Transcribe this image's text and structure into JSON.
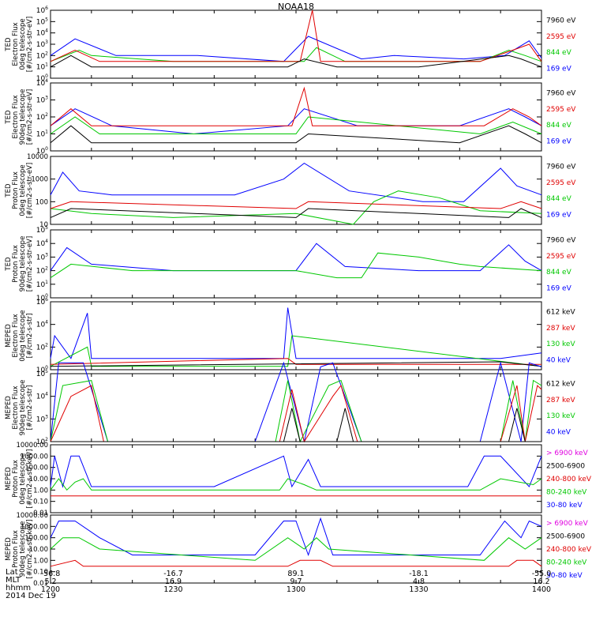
{
  "title": "NOAA18",
  "colors": {
    "black": "#000000",
    "red": "#e00000",
    "green": "#00c800",
    "blue": "#0000ff",
    "magenta": "#e000e0"
  },
  "chart_data": [
    {
      "type": "line",
      "ylabel": [
        "TED",
        "Electron Flux",
        "0deg telescope",
        "[#/cm2-s-str-eV]"
      ],
      "yscale": "log",
      "yticks": [
        "10^0",
        "10^1",
        "10^2",
        "10^3",
        "10^4",
        "10^5",
        "10^6"
      ],
      "legend": [
        {
          "label": "7960 eV",
          "color": "black"
        },
        {
          "label": "2595 eV",
          "color": "red"
        },
        {
          "label": "844 eV",
          "color": "green"
        },
        {
          "label": "169 eV",
          "color": "blue"
        }
      ],
      "series": [
        {
          "color": "blue",
          "x": [
            1200,
            1206,
            1216,
            1236,
            1257,
            1303,
            1316,
            1324,
            1341,
            1351,
            1357,
            1400
          ],
          "y": [
            100,
            3000,
            100,
            100,
            30,
            5000,
            50,
            100,
            50,
            100,
            2000,
            60
          ]
        },
        {
          "color": "green",
          "x": [
            1200,
            1207,
            1210,
            1230,
            1302,
            1305,
            1312,
            1345,
            1352,
            1356,
            1400
          ],
          "y": [
            30,
            300,
            100,
            30,
            30,
            500,
            30,
            30,
            300,
            100,
            30
          ]
        },
        {
          "color": "red",
          "x": [
            1200,
            1206,
            1212,
            1301,
            1304,
            1306,
            1345,
            1353,
            1357,
            1400
          ],
          "y": [
            30,
            300,
            30,
            30,
            1000000,
            30,
            30,
            300,
            1000,
            30
          ]
        },
        {
          "color": "black",
          "x": [
            1200,
            1205,
            1210,
            1258,
            1302,
            1310,
            1330,
            1352,
            1355,
            1400
          ],
          "y": [
            10,
            100,
            10,
            10,
            50,
            10,
            10,
            100,
            50,
            10
          ]
        }
      ]
    },
    {
      "type": "line",
      "ylabel": [
        "TED",
        "Electron Flux",
        "90deg telescope",
        "[#/cm2-s-str-eV]"
      ],
      "yscale": "log",
      "yticks": [
        "10^0",
        "10^1",
        "10^2",
        "10^3",
        "10^4"
      ],
      "legend": [
        {
          "label": "7960 eV",
          "color": "black"
        },
        {
          "label": "2595 eV",
          "color": "red"
        },
        {
          "label": "844 eV",
          "color": "green"
        },
        {
          "label": "169 eV",
          "color": "blue"
        }
      ],
      "series": [
        {
          "color": "blue",
          "x": [
            1200,
            1206,
            1215,
            1235,
            1258,
            1302,
            1315,
            1325,
            1340,
            1352,
            1356,
            1400
          ],
          "y": [
            30,
            300,
            30,
            10,
            30,
            300,
            30,
            30,
            30,
            300,
            100,
            30
          ]
        },
        {
          "color": "green",
          "x": [
            1200,
            1206,
            1212,
            1300,
            1303,
            1345,
            1353,
            1400
          ],
          "y": [
            10,
            100,
            10,
            10,
            100,
            10,
            50,
            10
          ]
        },
        {
          "color": "red",
          "x": [
            1200,
            1205,
            1210,
            1259,
            1302,
            1304,
            1346,
            1353,
            1357,
            1400
          ],
          "y": [
            30,
            300,
            30,
            30,
            5000,
            30,
            30,
            300,
            100,
            30
          ]
        },
        {
          "color": "black",
          "x": [
            1200,
            1205,
            1210,
            1300,
            1303,
            1340,
            1352,
            1356,
            1400
          ],
          "y": [
            3,
            30,
            3,
            3,
            10,
            3,
            30,
            10,
            3
          ]
        }
      ]
    },
    {
      "type": "line",
      "ylabel": [
        "TED",
        "Proton Flux",
        "0deg telescope",
        "[#/cm2-s-str-eV]"
      ],
      "yscale": "log",
      "yticks": [
        "10",
        "100",
        "1000",
        "10000"
      ],
      "legend": [
        {
          "label": "7960 eV",
          "color": "black"
        },
        {
          "label": "2595 eV",
          "color": "red"
        },
        {
          "label": "844 eV",
          "color": "green"
        },
        {
          "label": "169 eV",
          "color": "blue"
        }
      ],
      "series": [
        {
          "color": "blue",
          "x": [
            1200,
            1203,
            1207,
            1215,
            1245,
            1257,
            1302,
            1313,
            1331,
            1341,
            1350,
            1354,
            1400
          ],
          "y": [
            200,
            2000,
            300,
            200,
            200,
            1000,
            5000,
            300,
            100,
            100,
            3000,
            500,
            200
          ]
        },
        {
          "color": "green",
          "x": [
            1200,
            1210,
            1230,
            1300,
            1314,
            1319,
            1325,
            1335,
            1345,
            1400
          ],
          "y": [
            50,
            30,
            20,
            30,
            10,
            100,
            300,
            150,
            40,
            30
          ]
        },
        {
          "color": "red",
          "x": [
            1200,
            1205,
            1300,
            1303,
            1350,
            1355,
            1400
          ],
          "y": [
            50,
            100,
            50,
            100,
            50,
            100,
            50
          ]
        },
        {
          "color": "black",
          "x": [
            1200,
            1205,
            1300,
            1303,
            1352,
            1355,
            1400
          ],
          "y": [
            20,
            50,
            20,
            50,
            20,
            50,
            20
          ]
        }
      ]
    },
    {
      "type": "line",
      "ylabel": [
        "TED",
        "Proton Flux",
        "90deg telescope",
        "[#/cm2-s-str-eV]"
      ],
      "yscale": "log",
      "yticks": [
        "10^0",
        "10^1",
        "10^2",
        "10^3",
        "10^4",
        "10^5"
      ],
      "legend": [
        {
          "label": "7960 eV",
          "color": "black"
        },
        {
          "label": "2595 eV",
          "color": "red"
        },
        {
          "label": "844 eV",
          "color": "green"
        },
        {
          "label": "169 eV",
          "color": "blue"
        }
      ],
      "series": [
        {
          "color": "blue",
          "x": [
            1200,
            1204,
            1210,
            1230,
            1300,
            1305,
            1312,
            1330,
            1345,
            1352,
            1356,
            1400
          ],
          "y": [
            100,
            5000,
            300,
            100,
            100,
            10000,
            200,
            100,
            100,
            8000,
            500,
            100
          ]
        },
        {
          "color": "green",
          "x": [
            1200,
            1205,
            1220,
            1245,
            1300,
            1310,
            1316,
            1320,
            1330,
            1340,
            1345,
            1400
          ],
          "y": [
            30,
            300,
            100,
            100,
            100,
            30,
            30,
            2000,
            1000,
            300,
            200,
            100
          ]
        }
      ]
    },
    {
      "type": "line",
      "ylabel": [
        "MEPED",
        "Electron Flux",
        "0deg telescope",
        "[#/cm2-s-str]"
      ],
      "yscale": "log",
      "yticks": [
        "10^0",
        "10^2",
        "10^4",
        "10^6"
      ],
      "legend": [
        {
          "label": "612 keV",
          "color": "black"
        },
        {
          "label": "287 keV",
          "color": "red"
        },
        {
          "label": "130 keV",
          "color": "green"
        },
        {
          "label": "40 keV",
          "color": "blue"
        }
      ],
      "series": [
        {
          "color": "blue",
          "x": [
            1200,
            1201,
            1205,
            1209,
            1210,
            1240,
            1257,
            1258,
            1300,
            1350,
            1400
          ],
          "y": [
            10,
            1000,
            10,
            100000,
            10,
            10,
            10,
            300000,
            10,
            10,
            30
          ]
        },
        {
          "color": "green",
          "x": [
            1200,
            1209,
            1210,
            1258,
            1259,
            1400
          ],
          "y": [
            2,
            100,
            2,
            2,
            1000,
            2
          ]
        },
        {
          "color": "red",
          "x": [
            1200,
            1258,
            1300,
            1400
          ],
          "y": [
            3,
            10,
            3,
            3
          ]
        },
        {
          "color": "black",
          "x": [
            1200,
            1350,
            1400
          ],
          "y": [
            2,
            5,
            2
          ]
        }
      ]
    },
    {
      "type": "line",
      "ylabel": [
        "MEPED",
        "Electron Flux",
        "90deg telescope",
        "[#/cm2-s-str]"
      ],
      "yscale": "log",
      "yticks": [
        "10^2",
        "10^3",
        "10^4",
        "10^5"
      ],
      "legend": [
        {
          "label": "612 keV",
          "color": "black"
        },
        {
          "label": "287 keV",
          "color": "red"
        },
        {
          "label": "130 keV",
          "color": "green"
        },
        {
          "label": "40 keV",
          "color": "blue"
        }
      ],
      "series": [
        {
          "color": "blue",
          "x": [
            1200,
            1202,
            1208,
            1214,
            1250,
            1257,
            1302,
            1306,
            1309,
            1316,
            1345,
            1350,
            1355,
            1357,
            1400
          ],
          "y": [
            100,
            300000,
            300000,
            100,
            100,
            300000,
            100,
            200000,
            300000,
            100,
            100,
            300000,
            100,
            300000,
            200000
          ]
        },
        {
          "color": "green",
          "x": [
            1200,
            1203,
            1210,
            1214,
            1255,
            1258,
            1301,
            1308,
            1311,
            1316,
            1350,
            1353,
            1356,
            1358,
            1400
          ],
          "y": [
            100,
            30000,
            50000,
            100,
            100,
            50000,
            100,
            30000,
            50000,
            100,
            100,
            50000,
            100,
            50000,
            30000
          ]
        },
        {
          "color": "red",
          "x": [
            1200,
            1205,
            1210,
            1213,
            1256,
            1259,
            1302,
            1309,
            1311,
            1315,
            1350,
            1354,
            1356,
            1359,
            1400
          ],
          "y": [
            100,
            10000,
            30000,
            100,
            100,
            20000,
            100,
            10000,
            30000,
            100,
            100,
            30000,
            100,
            30000,
            20000
          ]
        },
        {
          "color": "black",
          "x": [
            1200,
            1257,
            1259,
            1301,
            1310,
            1312,
            1314,
            1352,
            1354,
            1356,
            1400
          ],
          "y": [
            100,
            100,
            3000,
            100,
            100,
            3000,
            100,
            100,
            3000,
            100,
            100
          ]
        }
      ]
    },
    {
      "type": "line",
      "ylabel": [
        "MEPED",
        "Proton Flux",
        "0deg telescope",
        "[#/cm2-s-str-keV]"
      ],
      "yscale": "log",
      "yticks": [
        "0.01",
        "0.10",
        "1.00",
        "10.00",
        "100.00",
        "1000.00",
        "10000.00"
      ],
      "legend": [
        {
          "label": "> 6900 keV",
          "color": "magenta"
        },
        {
          "label": "2500-6900",
          "color": "black"
        },
        {
          "label": "240-800 keV",
          "color": "red"
        },
        {
          "label": "80-240 keV",
          "color": "green"
        },
        {
          "label": "30-80 keV",
          "color": "blue"
        }
      ],
      "series": [
        {
          "color": "blue",
          "x": [
            1200,
            1201,
            1203,
            1205,
            1207,
            1210,
            1240,
            1257,
            1259,
            1303,
            1306,
            1342,
            1346,
            1350,
            1357,
            1400
          ],
          "y": [
            2,
            1000,
            2,
            1000,
            1000,
            2,
            2,
            1000,
            2,
            500,
            2,
            2,
            1000,
            1000,
            2,
            1000
          ]
        },
        {
          "color": "green",
          "x": [
            1200,
            1202,
            1204,
            1206,
            1208,
            1210,
            1256,
            1258,
            1302,
            1305,
            1345,
            1350,
            1358,
            1400
          ],
          "y": [
            1,
            10,
            1,
            5,
            10,
            1,
            1,
            10,
            3,
            1,
            1,
            10,
            3,
            10
          ]
        },
        {
          "color": "red",
          "x": [
            1200,
            1203,
            1205,
            1400
          ],
          "y": [
            0.3,
            0.3,
            0.3,
            0.3
          ]
        }
      ]
    },
    {
      "type": "line",
      "ylabel": [
        "MEPED",
        "Proton Flux",
        "90deg telescope",
        "[#/cm2-s-str-keV]"
      ],
      "yscale": "log",
      "yticks": [
        "0.01",
        "0.10",
        "1.00",
        "10.00",
        "100.00",
        "1000.00",
        "10000.00"
      ],
      "legend": [
        {
          "label": "> 6900 keV",
          "color": "magenta"
        },
        {
          "label": "2500-6900",
          "color": "black"
        },
        {
          "label": "240-800 keV",
          "color": "red"
        },
        {
          "label": "80-240 keV",
          "color": "green"
        },
        {
          "label": "30-80 keV",
          "color": "blue"
        }
      ],
      "series": [
        {
          "color": "blue",
          "x": [
            1200,
            1202,
            1206,
            1212,
            1220,
            1250,
            1257,
            1300,
            1303,
            1306,
            1309,
            1345,
            1351,
            1355,
            1357,
            1400
          ],
          "y": [
            100,
            3000,
            3000,
            100,
            3,
            3,
            3000,
            3000,
            3,
            5000,
            3,
            3,
            3000,
            100,
            3000,
            1000
          ]
        },
        {
          "color": "green",
          "x": [
            1200,
            1203,
            1207,
            1212,
            1250,
            1258,
            1302,
            1305,
            1308,
            1346,
            1352,
            1356,
            1400
          ],
          "y": [
            10,
            100,
            100,
            10,
            1,
            100,
            10,
            100,
            10,
            1,
            100,
            10,
            100
          ]
        },
        {
          "color": "red",
          "x": [
            1200,
            1206,
            1208,
            1258,
            1301,
            1306,
            1309,
            1352,
            1354,
            1358,
            1400
          ],
          "y": [
            0.3,
            1,
            0.3,
            0.3,
            1,
            1,
            0.3,
            0.3,
            1,
            1,
            0.3
          ]
        }
      ]
    }
  ],
  "footer": {
    "row_labels": [
      "Lat",
      "MLT",
      "hhmm",
      "2014 Dec 19"
    ],
    "ticks": [
      {
        "lat": "-56.8",
        "mlt": "5.2",
        "hhmm": "1200"
      },
      {
        "lat": "-16.7",
        "mlt": "16.9",
        "hhmm": "1230"
      },
      {
        "lat": "89.1",
        "mlt": "9.7",
        "hhmm": "1300"
      },
      {
        "lat": "-18.1",
        "mlt": "4.8",
        "hhmm": "1330"
      },
      {
        "lat": "-55.0",
        "mlt": "16.2",
        "hhmm": "1400"
      }
    ]
  }
}
